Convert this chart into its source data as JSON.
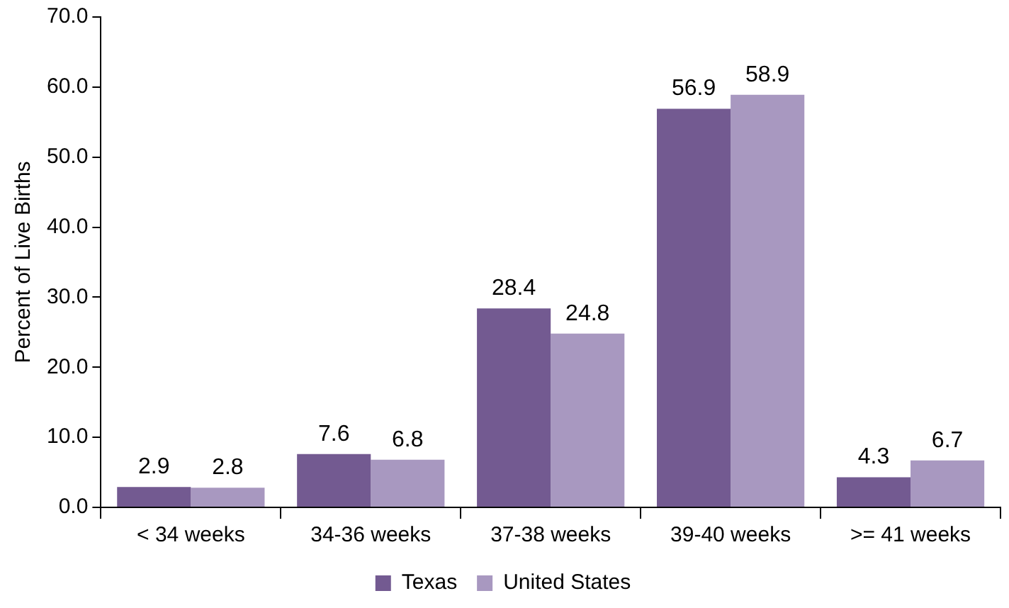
{
  "chart_data": {
    "type": "bar",
    "ylabel": "Percent of Live Births",
    "categories": [
      "< 34 weeks",
      "34-36 weeks",
      "37-38 weeks",
      "39-40 weeks",
      ">= 41 weeks"
    ],
    "series": [
      {
        "name": "Texas",
        "color": "#735a91",
        "values": [
          2.9,
          7.6,
          28.4,
          56.9,
          4.3
        ]
      },
      {
        "name": "United States",
        "color": "#a898c0",
        "values": [
          2.8,
          6.8,
          24.8,
          58.9,
          6.7
        ]
      }
    ],
    "ylim": [
      0,
      70
    ],
    "yticks": [
      {
        "value": 0,
        "label": "0.0"
      },
      {
        "value": 10,
        "label": "10.0"
      },
      {
        "value": 20,
        "label": "20.0"
      },
      {
        "value": 30,
        "label": "30.0"
      },
      {
        "value": 40,
        "label": "40.0"
      },
      {
        "value": 50,
        "label": "50.0"
      },
      {
        "value": 60,
        "label": "60.0"
      },
      {
        "value": 70,
        "label": "70.0"
      }
    ],
    "grid": false,
    "legend": "bottom",
    "data_labels": true
  }
}
